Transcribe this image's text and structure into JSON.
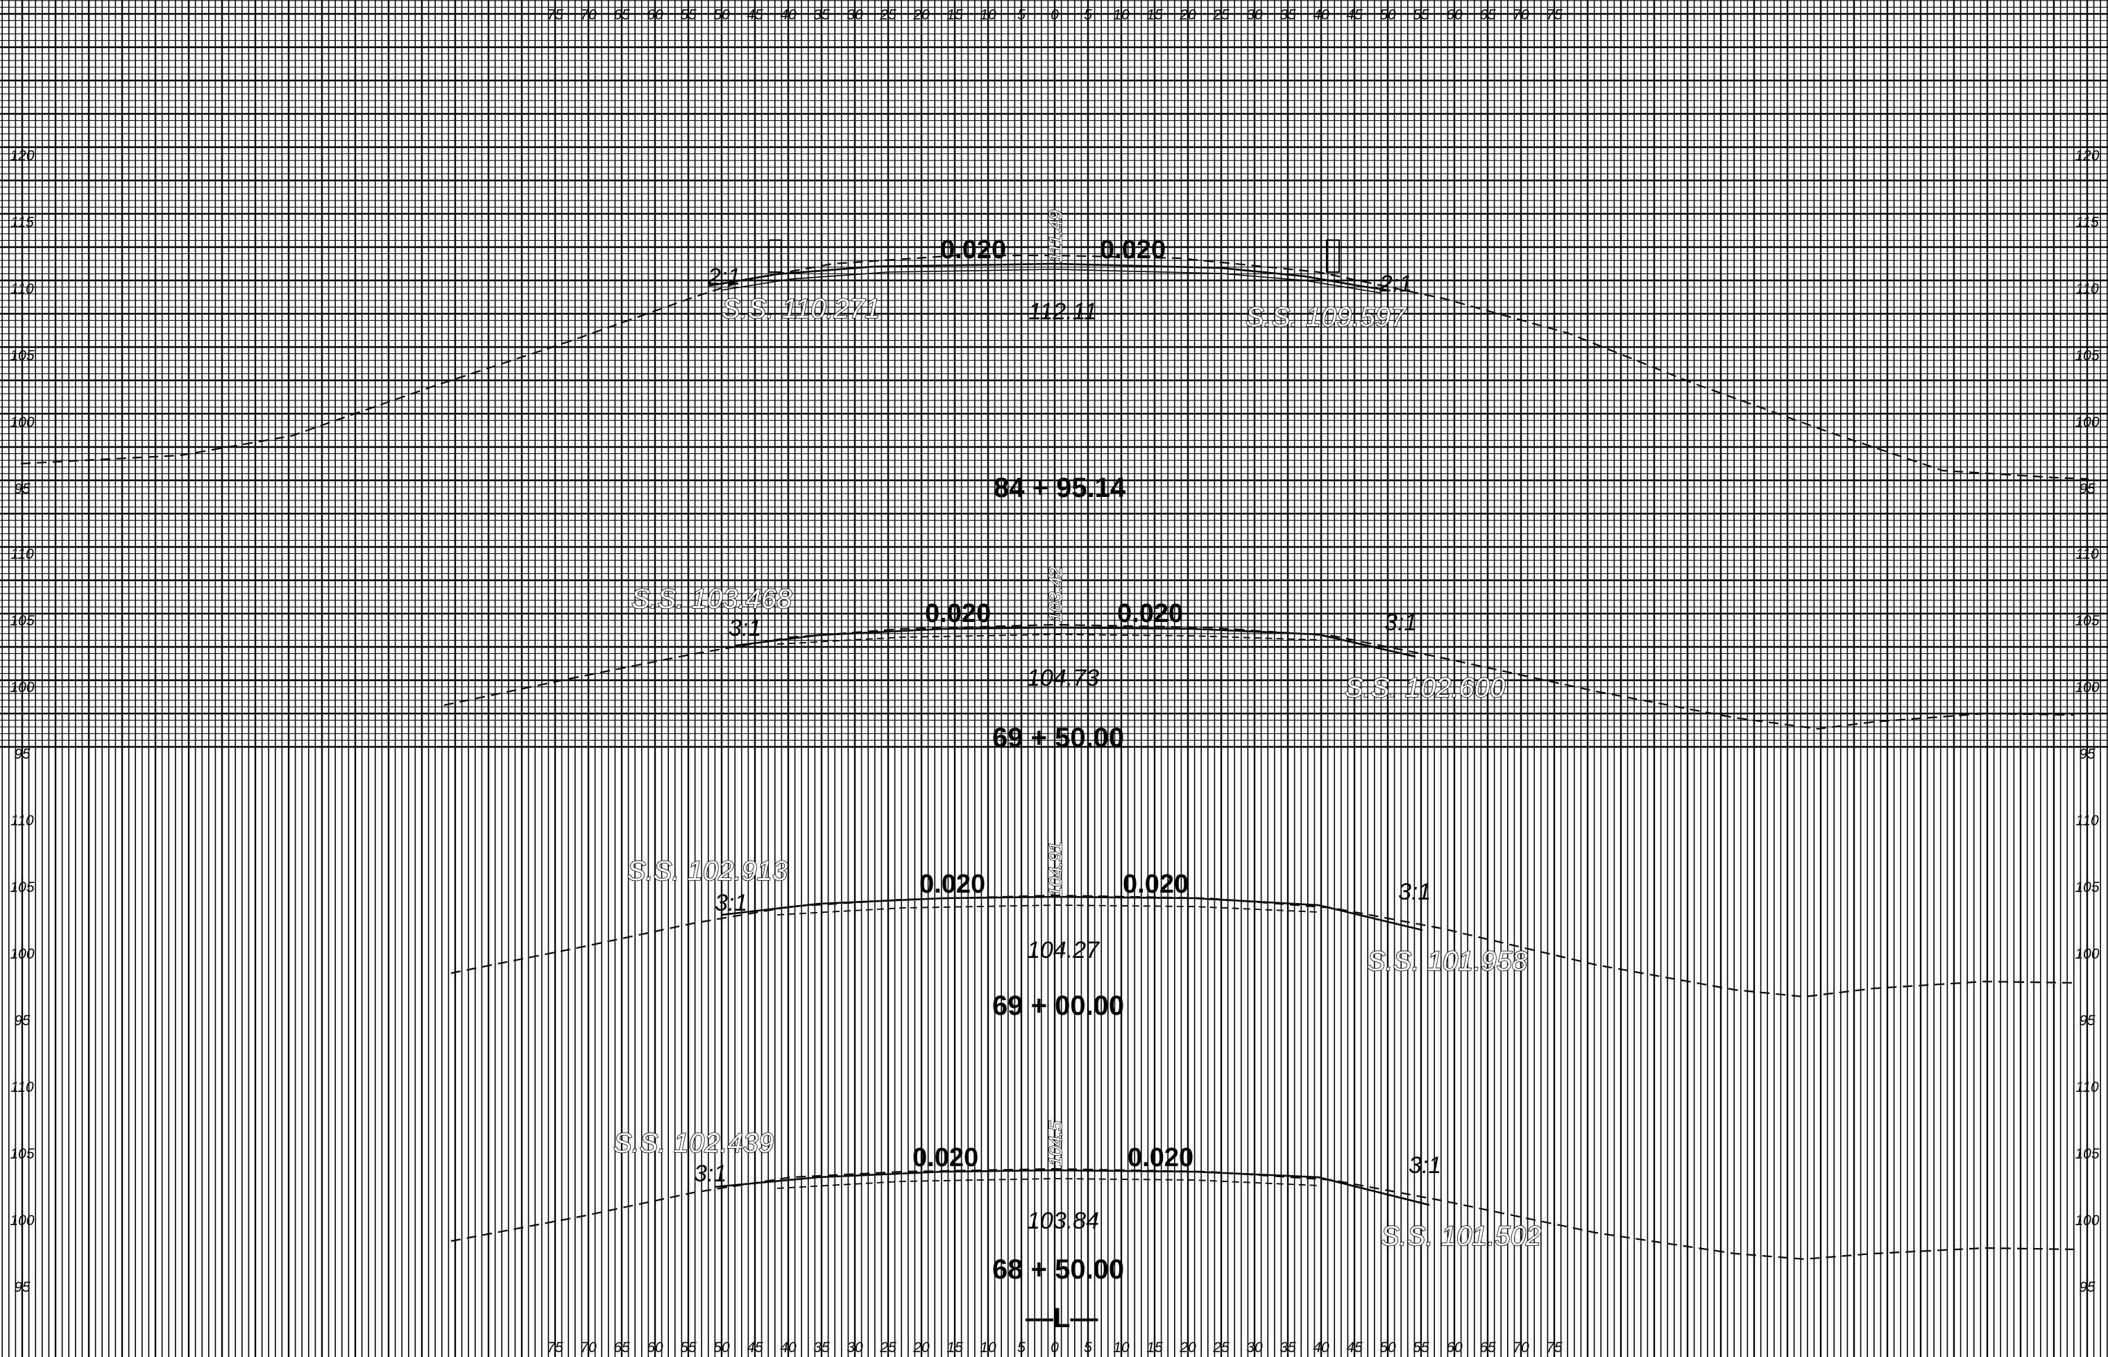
{
  "x_ticks": [
    "75",
    "70",
    "65",
    "60",
    "55",
    "50",
    "45",
    "40",
    "35",
    "30",
    "25",
    "20",
    "15",
    "10",
    "5",
    "0",
    "5",
    "10",
    "15",
    "20",
    "25",
    "30",
    "35",
    "40",
    "45",
    "50",
    "55",
    "60",
    "65",
    "70",
    "75"
  ],
  "sections": [
    {
      "station": "84 + 95.14",
      "y_ticks": [
        "120",
        "115",
        "110",
        "105",
        "100",
        "95"
      ],
      "centerline_elev": "111.49",
      "finish_grade": "112.11",
      "left_slope": "0.020",
      "right_slope": "0.020",
      "left_ss": "S.S. 110.271",
      "right_ss": "S.S. 109.597",
      "left_ratio": "2:1",
      "right_ratio": "2:1"
    },
    {
      "station": "69 + 50.00",
      "y_ticks": [
        "110",
        "105",
        "100",
        "95"
      ],
      "centerline_elev": "103.42",
      "finish_grade": "104.73",
      "left_slope": "0.020",
      "right_slope": "0.020",
      "left_ss": "S.S. 103.468",
      "right_ss": "S.S. 102.600",
      "left_ratio": "3:1",
      "right_ratio": "3:1"
    },
    {
      "station": "69 + 00.00",
      "y_ticks": [
        "110",
        "105",
        "100",
        "95"
      ],
      "centerline_elev": "104.91",
      "finish_grade": "104.27",
      "left_slope": "0.020",
      "right_slope": "0.020",
      "left_ss": "S.S. 102.913",
      "right_ss": "S.S. 101.958",
      "left_ratio": "3:1",
      "right_ratio": "3:1"
    },
    {
      "station": "68 + 50.00",
      "y_ticks": [
        "110",
        "105",
        "100",
        "95"
      ],
      "centerline_elev": "104.5",
      "finish_grade": "103.84",
      "left_slope": "0.020",
      "right_slope": "0.020",
      "left_ss": "S.S. 102.439",
      "right_ss": "S.S. 101.502",
      "left_ratio": "3:1",
      "right_ratio": "3:1"
    }
  ],
  "baseline_label": "—L—"
}
